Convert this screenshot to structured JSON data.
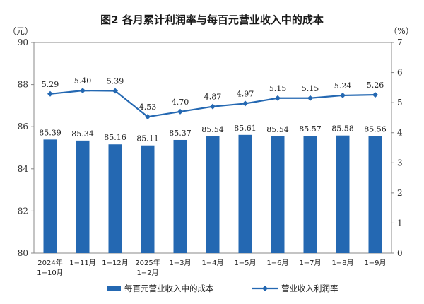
{
  "chart_data": {
    "type": "bar",
    "title": "图2  各月累计利润率与每百元营业收入中的成本",
    "left_unit": "（元）",
    "right_unit": "（%）",
    "categories": [
      [
        "2024年",
        "1−10月"
      ],
      [
        "1−11月"
      ],
      [
        "1−12月"
      ],
      [
        "2025年",
        "1−2月"
      ],
      [
        "1−3月"
      ],
      [
        "1−4月"
      ],
      [
        "1−5月"
      ],
      [
        "1−6月"
      ],
      [
        "1−7月"
      ],
      [
        "1−8月"
      ],
      [
        "1−9月"
      ]
    ],
    "series": [
      {
        "name": "每百元营业收入中的成本",
        "type": "bar",
        "axis": "left",
        "values": [
          85.39,
          85.34,
          85.16,
          85.11,
          85.37,
          85.54,
          85.61,
          85.54,
          85.57,
          85.58,
          85.56
        ],
        "labels": [
          "85.39",
          "85.34",
          "85.16",
          "85.11",
          "85.37",
          "85.54",
          "85.61",
          "85.54",
          "85.57",
          "85.58",
          "85.56"
        ],
        "color": "#2468b2"
      },
      {
        "name": "营业收入利润率",
        "type": "line",
        "axis": "right",
        "values": [
          5.29,
          5.4,
          5.39,
          4.53,
          4.7,
          4.87,
          4.97,
          5.15,
          5.15,
          5.24,
          5.26
        ],
        "labels": [
          "5.29",
          "5.40",
          "5.39",
          "4.53",
          "4.70",
          "4.87",
          "4.97",
          "5.15",
          "5.15",
          "5.24",
          "5.26"
        ],
        "color": "#2468b2"
      }
    ],
    "left_axis": {
      "ylim": [
        80,
        90
      ],
      "ticks": [
        "80",
        "82",
        "84",
        "86",
        "88",
        "90"
      ],
      "tick_values": [
        80,
        82,
        84,
        86,
        88,
        90
      ]
    },
    "right_axis": {
      "ylim": [
        0,
        7
      ],
      "ticks": [
        "0",
        "1",
        "2",
        "3",
        "4",
        "5",
        "6",
        "7"
      ],
      "tick_values": [
        0,
        1,
        2,
        3,
        4,
        5,
        6,
        7
      ]
    },
    "grid": false,
    "legend_position": "bottom"
  }
}
